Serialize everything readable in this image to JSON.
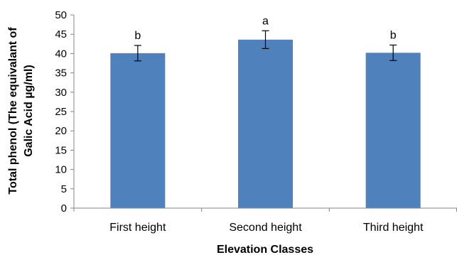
{
  "chart_data": {
    "type": "bar",
    "categories": [
      "First height",
      "Second height",
      "Third height"
    ],
    "values": [
      40.1,
      43.6,
      40.2
    ],
    "errors": [
      2.0,
      2.3,
      2.0
    ],
    "significance": [
      "b",
      "a",
      "b"
    ],
    "title": "",
    "xlabel": "Elevation Classes",
    "ylabel_lines": [
      "Total phenol (The equivalant of",
      "Galic Acid µg/ml)"
    ],
    "ylim": [
      0,
      50
    ],
    "yticks": [
      0,
      5,
      10,
      15,
      20,
      25,
      30,
      35,
      40,
      45,
      50
    ],
    "grid": false,
    "legend": "none",
    "bar_color": "#4f81bd"
  }
}
